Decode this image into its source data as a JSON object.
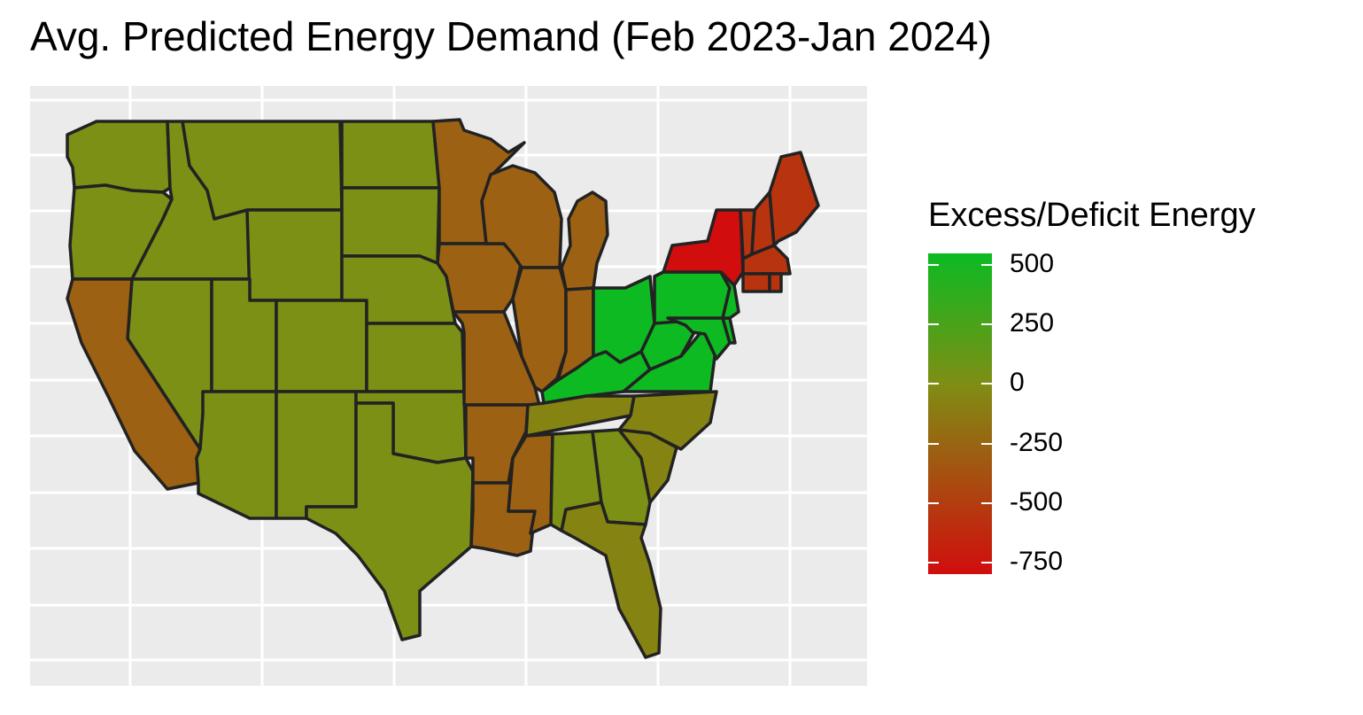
{
  "title": "Avg. Predicted Energy Demand (Feb 2023-Jan 2024)",
  "legend": {
    "title": "Excess/Deficit Energy",
    "min": -800,
    "max": 550,
    "low_color": "#d10d0d",
    "mid_color": "#7f8e14",
    "high_color": "#0bbb22",
    "ticks": [
      {
        "label": "500",
        "value": 500
      },
      {
        "label": "250",
        "value": 250
      },
      {
        "label": "0",
        "value": 0
      },
      {
        "label": "-250",
        "value": -250
      },
      {
        "label": "-500",
        "value": -500
      },
      {
        "label": "-750",
        "value": -750
      }
    ]
  },
  "map_colors": {
    "panel_bg": "#ebebeb",
    "grid": "#ffffff",
    "border": "#222222",
    "near_zero": "#82911a",
    "deficit_mild": "#a27215",
    "deficit_strong": "#c44a12",
    "extreme_deficit": "#d11010",
    "surplus": "#0bba22"
  },
  "regions": [
    {
      "name": "washington",
      "value": 20
    },
    {
      "name": "oregon",
      "value": 20
    },
    {
      "name": "idaho",
      "value": 20
    },
    {
      "name": "montana",
      "value": 20
    },
    {
      "name": "wyoming",
      "value": 20
    },
    {
      "name": "north-dakota",
      "value": 20
    },
    {
      "name": "south-dakota",
      "value": 20
    },
    {
      "name": "nebraska",
      "value": 20
    },
    {
      "name": "kansas",
      "value": 20
    },
    {
      "name": "oklahoma",
      "value": 20
    },
    {
      "name": "texas",
      "value": 20
    },
    {
      "name": "nevada",
      "value": 20
    },
    {
      "name": "utah",
      "value": 20
    },
    {
      "name": "colorado",
      "value": 20
    },
    {
      "name": "arizona",
      "value": 20
    },
    {
      "name": "new-mexico",
      "value": 20
    },
    {
      "name": "california",
      "value": -280
    },
    {
      "name": "minnesota",
      "value": -280
    },
    {
      "name": "iowa",
      "value": -280
    },
    {
      "name": "missouri",
      "value": -280
    },
    {
      "name": "arkansas",
      "value": -280
    },
    {
      "name": "louisiana",
      "value": -280
    },
    {
      "name": "wisconsin",
      "value": -280
    },
    {
      "name": "illinois",
      "value": -280
    },
    {
      "name": "michigan",
      "value": -280
    },
    {
      "name": "indiana",
      "value": -280
    },
    {
      "name": "mississippi",
      "value": -280
    },
    {
      "name": "tennessee",
      "value": -60
    },
    {
      "name": "alabama",
      "value": 20
    },
    {
      "name": "georgia",
      "value": 20
    },
    {
      "name": "florida",
      "value": -60
    },
    {
      "name": "south-carolina",
      "value": -60
    },
    {
      "name": "north-carolina",
      "value": -60
    },
    {
      "name": "ohio",
      "value": 540
    },
    {
      "name": "kentucky",
      "value": 540
    },
    {
      "name": "west-virginia",
      "value": 540
    },
    {
      "name": "virginia",
      "value": 540
    },
    {
      "name": "pennsylvania",
      "value": 540
    },
    {
      "name": "maryland",
      "value": 540
    },
    {
      "name": "delaware",
      "value": 540
    },
    {
      "name": "new-jersey",
      "value": 540
    },
    {
      "name": "new-york",
      "value": -800
    },
    {
      "name": "vermont",
      "value": -560
    },
    {
      "name": "new-hampshire",
      "value": -560
    },
    {
      "name": "maine",
      "value": -560
    },
    {
      "name": "massachusetts",
      "value": -560
    },
    {
      "name": "connecticut",
      "value": -560
    },
    {
      "name": "rhode-island",
      "value": -560
    }
  ]
}
